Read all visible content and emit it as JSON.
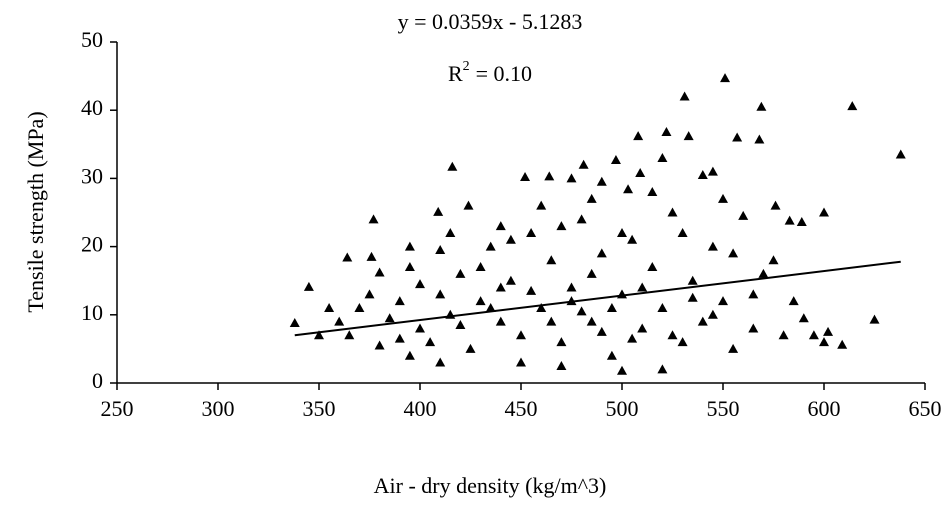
{
  "chart_data": {
    "type": "scatter",
    "equation": "y = 0.0359x - 5.1283",
    "r2": {
      "base": "R",
      "sup": "2",
      "text": "= 0.10"
    },
    "xlabel": "Air - dry density (kg/m^3)",
    "ylabel": "Tensile strength (MPa)",
    "xlim": [
      250,
      650
    ],
    "ylim": [
      0,
      50
    ],
    "xticks": [
      250,
      300,
      350,
      400,
      450,
      500,
      550,
      600,
      650
    ],
    "yticks": [
      0,
      10,
      20,
      30,
      40,
      50
    ],
    "color": "#000000",
    "x": [
      551,
      531,
      569,
      614,
      638,
      522,
      508,
      533,
      557,
      568,
      497,
      481,
      416,
      452,
      464,
      509,
      490,
      503,
      545,
      540,
      576,
      583,
      589,
      377,
      409,
      424,
      376,
      364,
      345,
      338,
      350,
      370,
      380,
      395,
      400,
      405,
      410,
      415,
      420,
      425,
      430,
      435,
      440,
      445,
      450,
      455,
      460,
      465,
      470,
      475,
      480,
      485,
      490,
      495,
      500,
      500,
      505,
      510,
      515,
      520,
      525,
      530,
      535,
      540,
      545,
      550,
      555,
      560,
      565,
      570,
      575,
      580,
      585,
      590,
      595,
      600,
      602,
      609,
      625,
      600,
      410,
      450,
      470,
      520,
      380,
      360,
      365,
      390,
      395,
      430,
      440,
      460,
      470,
      480,
      490,
      510,
      515,
      525,
      530,
      535,
      545,
      555,
      565,
      420,
      435,
      455,
      465,
      475,
      485,
      495,
      505,
      385,
      400,
      410,
      445,
      485,
      500,
      550,
      520,
      475,
      440,
      415,
      395,
      375,
      355,
      390
    ],
    "values": [
      44.7,
      42,
      40.5,
      40.6,
      33.5,
      36.8,
      36.2,
      36.2,
      36,
      35.7,
      32.7,
      32,
      31.7,
      30.2,
      30.3,
      30.8,
      29.5,
      28.4,
      31,
      30.5,
      26,
      23.8,
      23.6,
      24,
      25.1,
      26,
      18.5,
      18.4,
      14.1,
      8.8,
      7,
      11,
      16.2,
      17,
      8,
      6,
      13,
      10,
      16,
      5,
      12,
      20,
      9,
      15,
      7,
      22,
      11,
      18,
      6,
      14,
      24,
      9,
      19,
      4,
      13,
      1.8,
      21,
      8,
      17,
      11,
      25,
      6,
      15,
      9,
      20,
      12,
      5,
      24.5,
      8,
      16,
      18,
      7,
      12,
      9.5,
      7,
      6,
      7.5,
      5.6,
      9.3,
      25,
      3,
      3,
      2.5,
      2,
      5.5,
      9,
      7,
      12,
      4,
      17,
      14,
      26,
      23,
      10.5,
      7.5,
      14,
      28,
      7,
      22,
      12.5,
      10,
      19,
      13,
      8.5,
      11,
      13.5,
      9,
      12,
      16,
      11,
      6.5,
      9.5,
      14.5,
      19.5,
      21,
      27,
      22,
      27,
      33,
      30,
      23,
      22,
      20,
      13,
      11,
      6.5
    ],
    "trendline": {
      "x": [
        338,
        638
      ],
      "y": [
        7.0,
        17.78
      ]
    }
  }
}
